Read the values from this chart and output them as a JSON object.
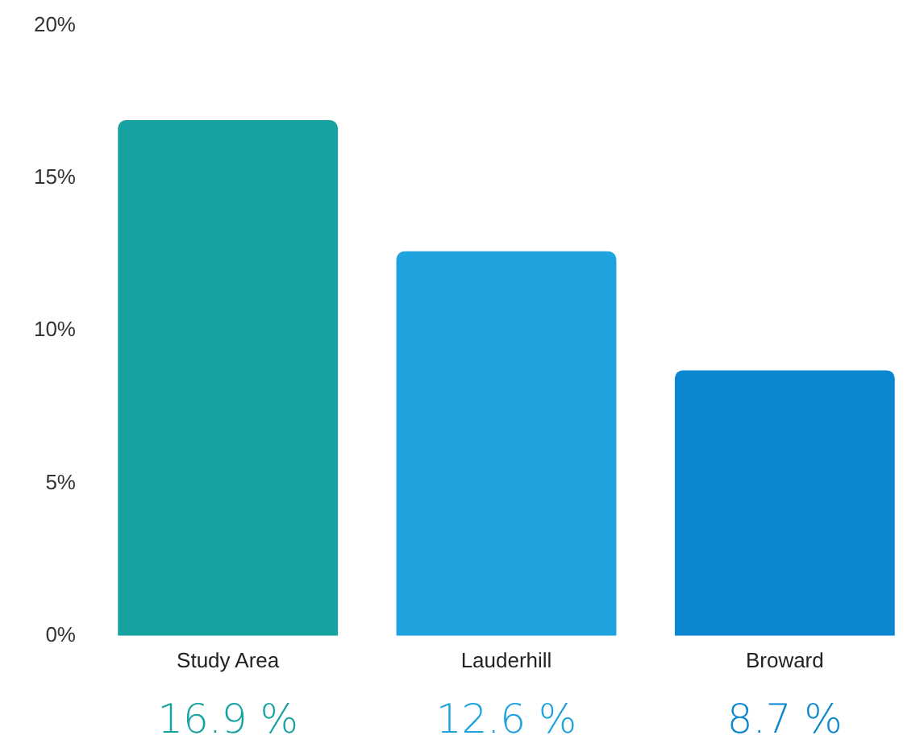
{
  "chart_data": {
    "type": "bar",
    "categories": [
      "Study Area",
      "Lauderhill",
      "Broward"
    ],
    "values": [
      16.9,
      12.6,
      8.7
    ],
    "colors": [
      "#17a3a2",
      "#1ea3de",
      "#0b87d1"
    ],
    "value_labels": [
      "16.9 %",
      "12.6 %",
      "8.7 %"
    ],
    "ylim": [
      0,
      20
    ],
    "yticks": [
      {
        "value": 0,
        "label": "0%"
      },
      {
        "value": 5,
        "label": "5%"
      },
      {
        "value": 10,
        "label": "10%"
      },
      {
        "value": 15,
        "label": "15%"
      },
      {
        "value": 20,
        "label": "20%"
      }
    ],
    "grid": false,
    "legend": false
  }
}
